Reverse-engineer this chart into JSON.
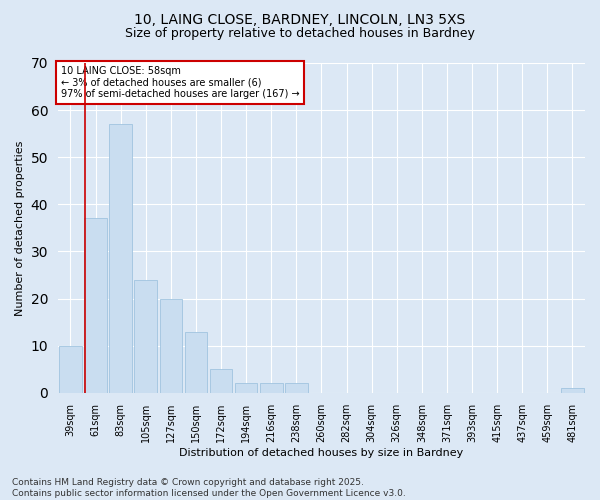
{
  "title_line1": "10, LAING CLOSE, BARDNEY, LINCOLN, LN3 5XS",
  "title_line2": "Size of property relative to detached houses in Bardney",
  "xlabel": "Distribution of detached houses by size in Bardney",
  "ylabel": "Number of detached properties",
  "categories": [
    "39sqm",
    "61sqm",
    "83sqm",
    "105sqm",
    "127sqm",
    "150sqm",
    "172sqm",
    "194sqm",
    "216sqm",
    "238sqm",
    "260sqm",
    "282sqm",
    "304sqm",
    "326sqm",
    "348sqm",
    "371sqm",
    "393sqm",
    "415sqm",
    "437sqm",
    "459sqm",
    "481sqm"
  ],
  "values": [
    10,
    37,
    57,
    24,
    20,
    13,
    5,
    2,
    2,
    2,
    0,
    0,
    0,
    0,
    0,
    0,
    0,
    0,
    0,
    0,
    1
  ],
  "bar_color": "#c9ddf0",
  "bar_edge_color": "#a0c4e0",
  "vline_color": "#cc0000",
  "vline_pos": 0.575,
  "ylim": [
    0,
    70
  ],
  "yticks": [
    0,
    10,
    20,
    30,
    40,
    50,
    60,
    70
  ],
  "annotation_text": "10 LAING CLOSE: 58sqm\n← 3% of detached houses are smaller (6)\n97% of semi-detached houses are larger (167) →",
  "annotation_box_color": "#ffffff",
  "annotation_box_edge": "#cc0000",
  "footer_line1": "Contains HM Land Registry data © Crown copyright and database right 2025.",
  "footer_line2": "Contains public sector information licensed under the Open Government Licence v3.0.",
  "bg_color": "#dce8f5",
  "plot_bg_color": "#dce8f5",
  "title_fontsize": 10,
  "subtitle_fontsize": 9,
  "axis_label_fontsize": 8,
  "tick_fontsize": 7,
  "annotation_fontsize": 7,
  "footer_fontsize": 6.5
}
